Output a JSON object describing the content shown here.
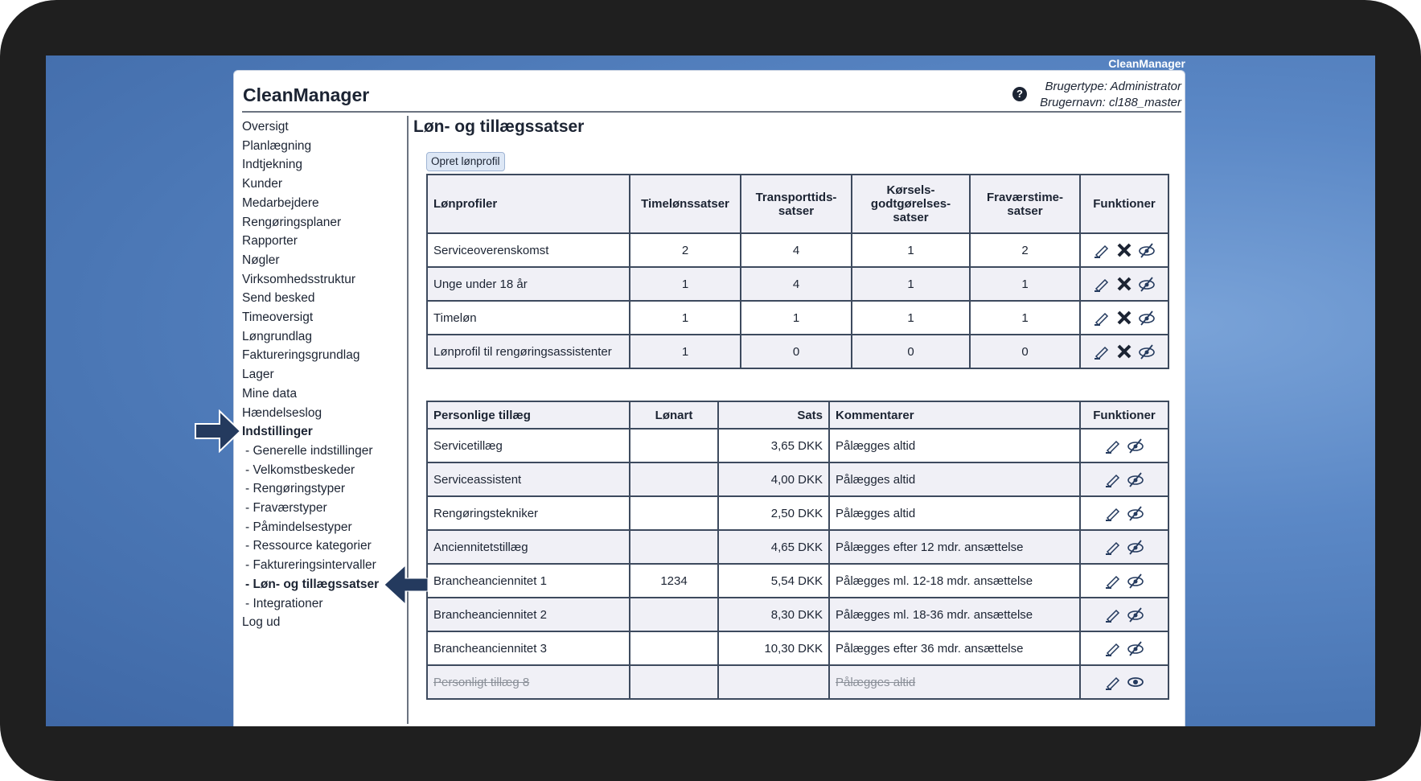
{
  "brand": "CleanManager",
  "app_title": "CleanManager",
  "user": {
    "type": "Brugertype: Administrator",
    "name": "Brugernavn: cl188_master"
  },
  "nav": [
    {
      "label": "Oversigt"
    },
    {
      "label": "Planlægning"
    },
    {
      "label": "Indtjekning"
    },
    {
      "label": "Kunder"
    },
    {
      "label": "Medarbejdere"
    },
    {
      "label": "Rengøringsplaner"
    },
    {
      "label": "Rapporter"
    },
    {
      "label": "Nøgler"
    },
    {
      "label": "Virksomhedsstruktur"
    },
    {
      "label": "Send besked"
    },
    {
      "label": "Timeoversigt"
    },
    {
      "label": "Løngrundlag"
    },
    {
      "label": "Faktureringsgrundlag"
    },
    {
      "label": "Lager"
    },
    {
      "label": "Mine data"
    },
    {
      "label": "Hændelseslog"
    },
    {
      "label": "Indstillinger"
    },
    {
      "label": "- Generelle indstillinger"
    },
    {
      "label": "- Velkomstbeskeder"
    },
    {
      "label": "- Rengøringstyper"
    },
    {
      "label": "- Fraværstyper"
    },
    {
      "label": "- Påmindelsestyper"
    },
    {
      "label": "- Ressource kategorier"
    },
    {
      "label": "- Faktureringsintervaller"
    },
    {
      "label": "- Løn- og tillægssatser"
    },
    {
      "label": "- Integrationer"
    },
    {
      "label": "Log ud"
    }
  ],
  "page_title": "Løn- og tillægssatser",
  "create_button": "Opret lønprofil",
  "profiles": {
    "headers": [
      "Lønprofiler",
      "Timelønssatser",
      "Transporttids-satser",
      "Kørsels-godtgørelses-satser",
      "Fraværstime-satser",
      "Funktioner"
    ],
    "rows": [
      [
        "Serviceoverenskomst",
        "2",
        "4",
        "1",
        "2"
      ],
      [
        "Unge under 18 år",
        "1",
        "4",
        "1",
        "1"
      ],
      [
        "Timeløn",
        "1",
        "1",
        "1",
        "1"
      ],
      [
        "Lønprofil til rengøringsassistenter",
        "1",
        "0",
        "0",
        "0"
      ]
    ]
  },
  "allowances": {
    "headers": [
      "Personlige tillæg",
      "Lønart",
      "Sats",
      "Kommentarer",
      "Funktioner"
    ],
    "rows": [
      [
        "Servicetillæg",
        "",
        "3,65 DKK",
        "Pålægges altid"
      ],
      [
        "Serviceassistent",
        "",
        "4,00 DKK",
        "Pålægges altid"
      ],
      [
        "Rengøringstekniker",
        "",
        "2,50 DKK",
        "Pålægges altid"
      ],
      [
        "Anciennitetstillæg",
        "",
        "4,65 DKK",
        "Pålægges efter 12 mdr. ansættelse"
      ],
      [
        "Brancheanciennitet 1",
        "1234",
        "5,54 DKK",
        "Pålægges ml. 12-18 mdr. ansættelse"
      ],
      [
        "Brancheanciennitet 2",
        "",
        "8,30 DKK",
        "Pålægges ml. 18-36 mdr. ansættelse"
      ],
      [
        "Brancheanciennitet 3",
        "",
        "10,30 DKK",
        "Pålægges efter 36 mdr. ansættelse"
      ],
      [
        "Personligt tillæg 8",
        "",
        "",
        "Pålægges altid"
      ]
    ]
  },
  "colors": {
    "accent": "#243a5e",
    "header_bg": "#f0f0f6"
  }
}
